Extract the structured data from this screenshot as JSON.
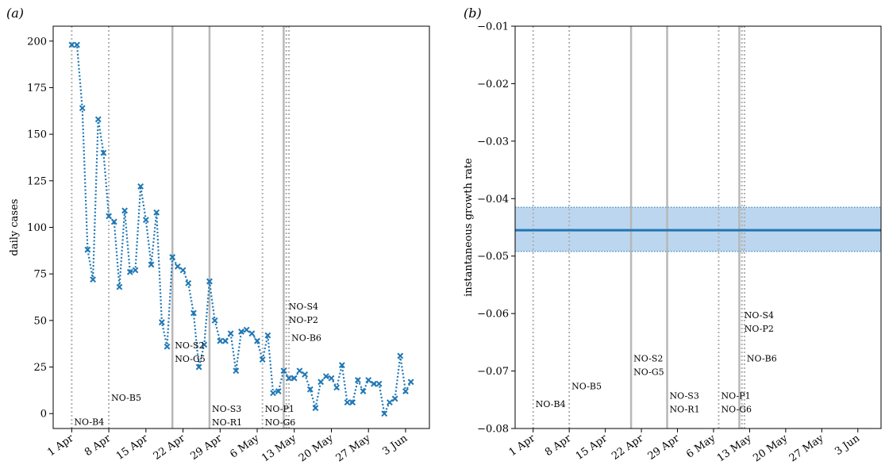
{
  "chart_data": [
    {
      "panel_label": "(a)",
      "type": "line",
      "ylabel": "daily cases",
      "ylim": [
        -8,
        208
      ],
      "yticks": [
        0,
        25,
        50,
        75,
        100,
        125,
        150,
        175,
        200
      ],
      "xticks": [
        {
          "day": 0,
          "label": "1 Apr"
        },
        {
          "day": 7,
          "label": "8 Apr"
        },
        {
          "day": 14,
          "label": "15 Apr"
        },
        {
          "day": 21,
          "label": "22 Apr"
        },
        {
          "day": 28,
          "label": "29 Apr"
        },
        {
          "day": 35,
          "label": "6 May"
        },
        {
          "day": 42,
          "label": "13 May"
        },
        {
          "day": 49,
          "label": "20 May"
        },
        {
          "day": 56,
          "label": "27 May"
        },
        {
          "day": 63,
          "label": "3 Jun"
        }
      ],
      "xlim": [
        -3.5,
        67.5
      ],
      "series_color": "#1f77b4",
      "series": [
        {
          "x": [
            0,
            1,
            2,
            3,
            4,
            5,
            6,
            7,
            8,
            9,
            10,
            11,
            12,
            13,
            14,
            15,
            16,
            17,
            18,
            19,
            20,
            21,
            22,
            23,
            24,
            25,
            26,
            27,
            28,
            29,
            30,
            31,
            32,
            33,
            34,
            35,
            36,
            37,
            38,
            39,
            40,
            41,
            42,
            43,
            44,
            45,
            46,
            47,
            48,
            49,
            50,
            51,
            52,
            53,
            54,
            55,
            56,
            57,
            58,
            59,
            60,
            61,
            62,
            63,
            64
          ],
          "y": [
            198,
            198,
            164,
            88,
            72,
            158,
            140,
            106,
            103,
            68,
            109,
            76,
            77,
            122,
            104,
            80,
            108,
            49,
            36,
            84,
            79,
            77,
            70,
            54,
            25,
            37,
            71,
            50,
            39,
            39,
            43,
            23,
            44,
            45,
            43,
            39,
            29,
            42,
            11,
            12,
            23,
            19,
            19,
            23,
            21,
            13,
            3,
            17,
            20,
            19,
            14,
            26,
            6,
            6,
            18,
            12,
            18,
            16,
            16,
            0,
            6,
            8,
            31,
            12,
            17
          ]
        }
      ],
      "events": [
        {
          "day": 0,
          "style": "dotted",
          "labels": [
            "NO-B4"
          ],
          "label_value": -6
        },
        {
          "day": 7,
          "style": "dotted",
          "labels": [
            "NO-B5"
          ],
          "label_value": 7
        },
        {
          "day": 19,
          "style": "solid",
          "labels": [
            "NO-S2",
            "NO-G5"
          ],
          "label_value": 35
        },
        {
          "day": 26,
          "style": "solid",
          "labels": [
            "NO-S3",
            "NO-R1"
          ],
          "label_value": 1
        },
        {
          "day": 36,
          "style": "dotted",
          "labels": [
            "NO-P1",
            "NO-G6"
          ],
          "label_value": 1
        },
        {
          "day": 40,
          "style": "solid",
          "labels": [],
          "label_value": 0
        },
        {
          "day": 40.5,
          "style": "dotted",
          "labels": [
            "NO-S4",
            "NO-P2"
          ],
          "label_value": 56
        },
        {
          "day": 41,
          "style": "dotted",
          "labels": [
            "NO-B6"
          ],
          "label_value": 39
        }
      ]
    },
    {
      "panel_label": "(b)",
      "type": "line",
      "ylabel": "instantaneous growth rate",
      "ylim": [
        -0.08,
        -0.01
      ],
      "yticks": [
        -0.08,
        -0.07,
        -0.06,
        -0.05,
        -0.04,
        -0.03,
        -0.02,
        -0.01
      ],
      "ytick_labels": [
        "−0.08",
        "−0.07",
        "−0.06",
        "−0.05",
        "−0.04",
        "−0.03",
        "−0.02",
        "−0.01"
      ],
      "xticks": [
        {
          "day": 0,
          "label": "1 Apr"
        },
        {
          "day": 7,
          "label": "8 Apr"
        },
        {
          "day": 14,
          "label": "15 Apr"
        },
        {
          "day": 21,
          "label": "22 Apr"
        },
        {
          "day": 28,
          "label": "29 Apr"
        },
        {
          "day": 35,
          "label": "6 May"
        },
        {
          "day": 42,
          "label": "13 May"
        },
        {
          "day": 49,
          "label": "20 May"
        },
        {
          "day": 56,
          "label": "27 May"
        },
        {
          "day": 63,
          "label": "3 Jun"
        }
      ],
      "xlim": [
        -3.5,
        67.5
      ],
      "series_color": "#1f77b4",
      "band_color": "#bcd6ef",
      "series": [
        {
          "x": [
            -3.5,
            67.5
          ],
          "y": [
            -0.0455,
            -0.0455
          ],
          "lower": [
            -0.0492,
            -0.0492
          ],
          "upper": [
            -0.0415,
            -0.0415
          ]
        }
      ],
      "events": [
        {
          "day": 0,
          "style": "dotted",
          "labels": [
            "NO-B4"
          ],
          "label_value": -0.0763
        },
        {
          "day": 7,
          "style": "dotted",
          "labels": [
            "NO-B5"
          ],
          "label_value": -0.0732
        },
        {
          "day": 19,
          "style": "solid",
          "labels": [
            "NO-S2",
            "NO-G5"
          ],
          "label_value": -0.0683
        },
        {
          "day": 26,
          "style": "solid",
          "labels": [
            "NO-S3",
            "NO-R1"
          ],
          "label_value": -0.0748
        },
        {
          "day": 36,
          "style": "dotted",
          "labels": [
            "NO-P1",
            "NO-G6"
          ],
          "label_value": -0.0748
        },
        {
          "day": 40,
          "style": "solid",
          "labels": [],
          "label_value": 0
        },
        {
          "day": 40.5,
          "style": "dotted",
          "labels": [
            "NO-S4",
            "NO-P2"
          ],
          "label_value": -0.0608
        },
        {
          "day": 41,
          "style": "dotted",
          "labels": [
            "NO-B6"
          ],
          "label_value": -0.0683
        }
      ]
    }
  ]
}
